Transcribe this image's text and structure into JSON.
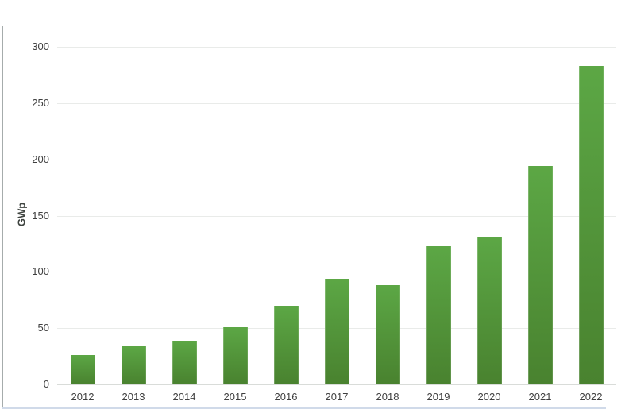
{
  "frame": {
    "background": "#FFFFFF",
    "left_edge_color": "#A6ACAC",
    "bottom_edge_color": "#D0DAE9"
  },
  "chart_data": {
    "type": "bar",
    "title": "",
    "xlabel": "",
    "ylabel": "GWp",
    "categories": [
      "2012",
      "2013",
      "2014",
      "2015",
      "2016",
      "2017",
      "2018",
      "2019",
      "2020",
      "2021",
      "2022"
    ],
    "values": [
      26,
      34,
      39,
      51,
      70,
      94,
      88,
      123,
      131,
      194,
      283
    ],
    "ylim": [
      0,
      300
    ],
    "yticks": [
      0,
      50,
      100,
      150,
      200,
      250,
      300
    ],
    "grid": true,
    "legend": "none",
    "bar_color_top": "#5CA745",
    "bar_color_bottom": "#49822F",
    "gridline_color": "#E9EBE9",
    "axis_line_color": "#D9DCD9",
    "tick_label_color": "#3F3F3F",
    "ylabel_color": "#3F4440"
  }
}
